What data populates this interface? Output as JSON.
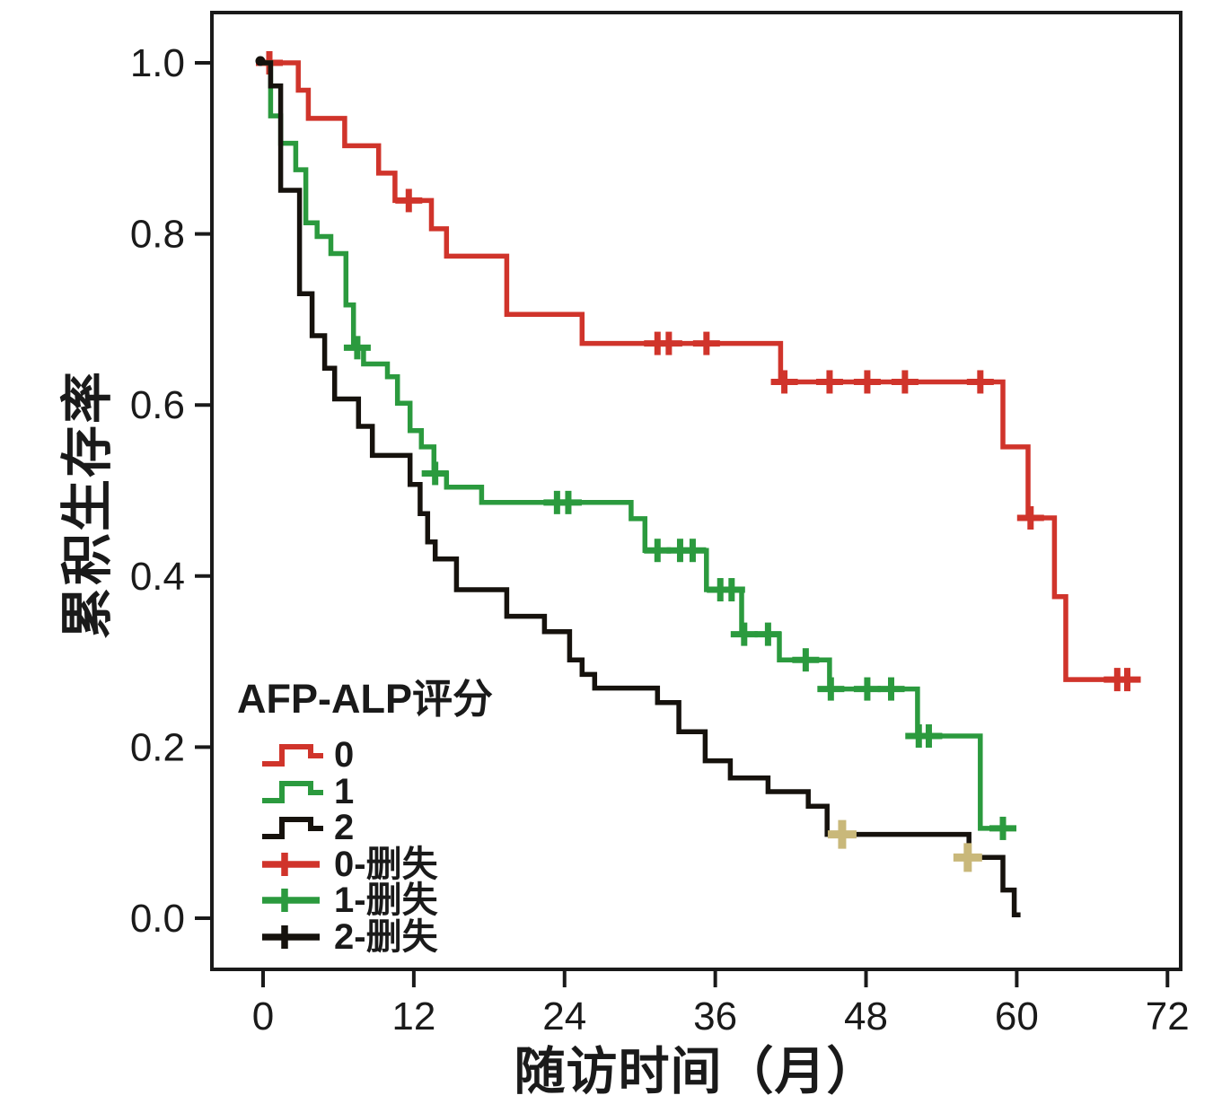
{
  "axes": {
    "x": {
      "label": "随访时间（月）",
      "ticks": [
        "0",
        "12",
        "24",
        "36",
        "48",
        "60",
        "72"
      ],
      "range": [
        0,
        73
      ]
    },
    "y": {
      "label": "累积生存率",
      "ticks": [
        "1.0",
        "0.8",
        "0.6",
        "0.4",
        "0.2",
        "0.0"
      ],
      "range": [
        0.0,
        1.0
      ]
    }
  },
  "legend": {
    "title": "AFP-ALP评分",
    "items": [
      {
        "label": "0",
        "marker": "step",
        "color": "#d0342b"
      },
      {
        "label": "1",
        "marker": "step",
        "color": "#2b9a3e"
      },
      {
        "label": "2",
        "marker": "step",
        "color": "#16120d"
      },
      {
        "label": "0-删失",
        "marker": "plus",
        "color": "#d0342b"
      },
      {
        "label": "1-删失",
        "marker": "plus",
        "color": "#2b9a3e"
      },
      {
        "label": "2-删失",
        "marker": "plus",
        "color": "#16120d"
      }
    ]
  },
  "colors": {
    "red": "#d0342b",
    "green": "#2b9a3e",
    "black": "#16120d",
    "tan_censor": "#c9b87a",
    "frame": "#1a1a1a",
    "background": "#ffffff"
  },
  "chart_data": {
    "type": "line",
    "subtype": "kaplan-meier-step",
    "title": "",
    "xlabel": "随访时间（月）",
    "ylabel": "累积生存率",
    "xlim": [
      0,
      73
    ],
    "ylim": [
      0.0,
      1.0
    ],
    "x_ticks": [
      0,
      12,
      24,
      36,
      48,
      60,
      72
    ],
    "y_ticks": [
      1.0,
      0.8,
      0.6,
      0.4,
      0.2,
      0.0
    ],
    "grid": false,
    "legend_title": "AFP-ALP评分",
    "legend_position": "lower-left-inside",
    "origin_marker": {
      "x": 0,
      "y": 1.0,
      "color": "#16120d"
    },
    "series": [
      {
        "name": "0",
        "color": "#d0342b",
        "end_time": 69.6,
        "points": [
          [
            0,
            1.0
          ],
          [
            2.8,
            0.968
          ],
          [
            3.6,
            0.935
          ],
          [
            6.5,
            0.903
          ],
          [
            9.2,
            0.871
          ],
          [
            10.5,
            0.839
          ],
          [
            13.4,
            0.806
          ],
          [
            14.6,
            0.774
          ],
          [
            19.4,
            0.706
          ],
          [
            25.4,
            0.672
          ],
          [
            41.2,
            0.627
          ],
          [
            58.9,
            0.551
          ],
          [
            60.9,
            0.468
          ],
          [
            63.0,
            0.376
          ],
          [
            63.9,
            0.279
          ]
        ],
        "censors": [
          [
            0.5,
            1.0
          ],
          [
            11.6,
            0.839
          ],
          [
            31.4,
            0.672
          ],
          [
            32.3,
            0.672
          ],
          [
            35.3,
            0.672
          ],
          [
            41.5,
            0.627
          ],
          [
            45.1,
            0.627
          ],
          [
            48.1,
            0.627
          ],
          [
            51.1,
            0.627
          ],
          [
            57.1,
            0.627
          ],
          [
            61.1,
            0.468
          ],
          [
            68.0,
            0.279
          ],
          [
            68.8,
            0.279
          ]
        ]
      },
      {
        "name": "1",
        "color": "#2b9a3e",
        "end_time": 59.8,
        "points": [
          [
            0,
            1.0
          ],
          [
            0.6,
            0.938
          ],
          [
            1.4,
            0.906
          ],
          [
            2.6,
            0.875
          ],
          [
            3.4,
            0.813
          ],
          [
            4.3,
            0.797
          ],
          [
            5.4,
            0.777
          ],
          [
            6.6,
            0.717
          ],
          [
            7.2,
            0.667
          ],
          [
            8.0,
            0.648
          ],
          [
            9.9,
            0.633
          ],
          [
            10.7,
            0.602
          ],
          [
            11.7,
            0.57
          ],
          [
            12.6,
            0.551
          ],
          [
            13.6,
            0.52
          ],
          [
            14.6,
            0.504
          ],
          [
            17.4,
            0.486
          ],
          [
            29.3,
            0.467
          ],
          [
            30.4,
            0.43
          ],
          [
            35.3,
            0.384
          ],
          [
            38.1,
            0.332
          ],
          [
            41.1,
            0.302
          ],
          [
            45.1,
            0.268
          ],
          [
            52.1,
            0.213
          ],
          [
            57.1,
            0.105
          ]
        ],
        "censors": [
          [
            7.5,
            0.667
          ],
          [
            13.7,
            0.52
          ],
          [
            23.4,
            0.486
          ],
          [
            24.3,
            0.486
          ],
          [
            31.4,
            0.43
          ],
          [
            33.2,
            0.43
          ],
          [
            34.2,
            0.43
          ],
          [
            36.4,
            0.384
          ],
          [
            37.3,
            0.384
          ],
          [
            38.3,
            0.332
          ],
          [
            40.2,
            0.332
          ],
          [
            43.2,
            0.302
          ],
          [
            45.2,
            0.268
          ],
          [
            48.1,
            0.268
          ],
          [
            50.0,
            0.268
          ],
          [
            52.2,
            0.213
          ],
          [
            53.0,
            0.213
          ],
          [
            58.9,
            0.105
          ]
        ]
      },
      {
        "name": "2",
        "color": "#16120d",
        "end_time": 60.3,
        "censor_color": "#c9b87a",
        "points": [
          [
            0,
            1.0
          ],
          [
            0.6,
            0.973
          ],
          [
            1.4,
            0.851
          ],
          [
            2.9,
            0.73
          ],
          [
            3.9,
            0.681
          ],
          [
            4.9,
            0.643
          ],
          [
            5.7,
            0.607
          ],
          [
            7.6,
            0.575
          ],
          [
            8.7,
            0.541
          ],
          [
            11.7,
            0.507
          ],
          [
            12.5,
            0.473
          ],
          [
            13.1,
            0.44
          ],
          [
            13.7,
            0.42
          ],
          [
            15.4,
            0.384
          ],
          [
            19.4,
            0.353
          ],
          [
            22.4,
            0.335
          ],
          [
            24.4,
            0.302
          ],
          [
            25.4,
            0.285
          ],
          [
            26.4,
            0.269
          ],
          [
            31.4,
            0.252
          ],
          [
            33.1,
            0.218
          ],
          [
            35.2,
            0.184
          ],
          [
            37.2,
            0.164
          ],
          [
            40.2,
            0.148
          ],
          [
            43.4,
            0.131
          ],
          [
            44.9,
            0.098
          ],
          [
            56.2,
            0.071
          ],
          [
            58.9,
            0.033
          ],
          [
            59.8,
            0.004
          ]
        ],
        "censors": [
          [
            46.1,
            0.098
          ],
          [
            56.1,
            0.071
          ]
        ]
      }
    ]
  }
}
